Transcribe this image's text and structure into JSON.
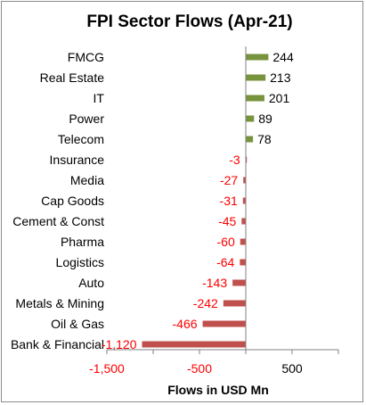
{
  "chart_data": {
    "type": "bar",
    "orientation": "horizontal",
    "title": "FPI Sector Flows (Apr-21)",
    "xlabel": "Flows in USD Mn",
    "ylabel": "",
    "categories": [
      "FMCG",
      "Real Estate",
      "IT",
      "Power",
      "Telecom",
      "Insurance",
      "Media",
      "Cap Goods",
      "Cement & Const",
      "Pharma",
      "Logistics",
      "Auto",
      "Metals & Mining",
      "Oil & Gas",
      "Bank & Financial"
    ],
    "values": [
      244,
      213,
      201,
      89,
      78,
      -3,
      -27,
      -31,
      -45,
      -60,
      -64,
      -143,
      -242,
      -466,
      -1120
    ],
    "value_labels": [
      "244",
      "213",
      "201",
      "89",
      "78",
      "-3",
      "-27",
      "-31",
      "-45",
      "-60",
      "-64",
      "-143",
      "-242",
      "-466",
      "-1,120"
    ],
    "xlim": [
      -1500,
      1000
    ],
    "xticks": [
      -1500,
      -500,
      500
    ],
    "xtick_labels": [
      "-1,500",
      "-500",
      "500"
    ],
    "grid": false,
    "legend": "none",
    "colors": {
      "positive_bar": "#77933c",
      "negative_bar": "#c0504d",
      "positive_label": "#000000",
      "negative_label": "#ff0000",
      "negative_tick": "#ff0000",
      "positive_tick": "#000000"
    }
  }
}
